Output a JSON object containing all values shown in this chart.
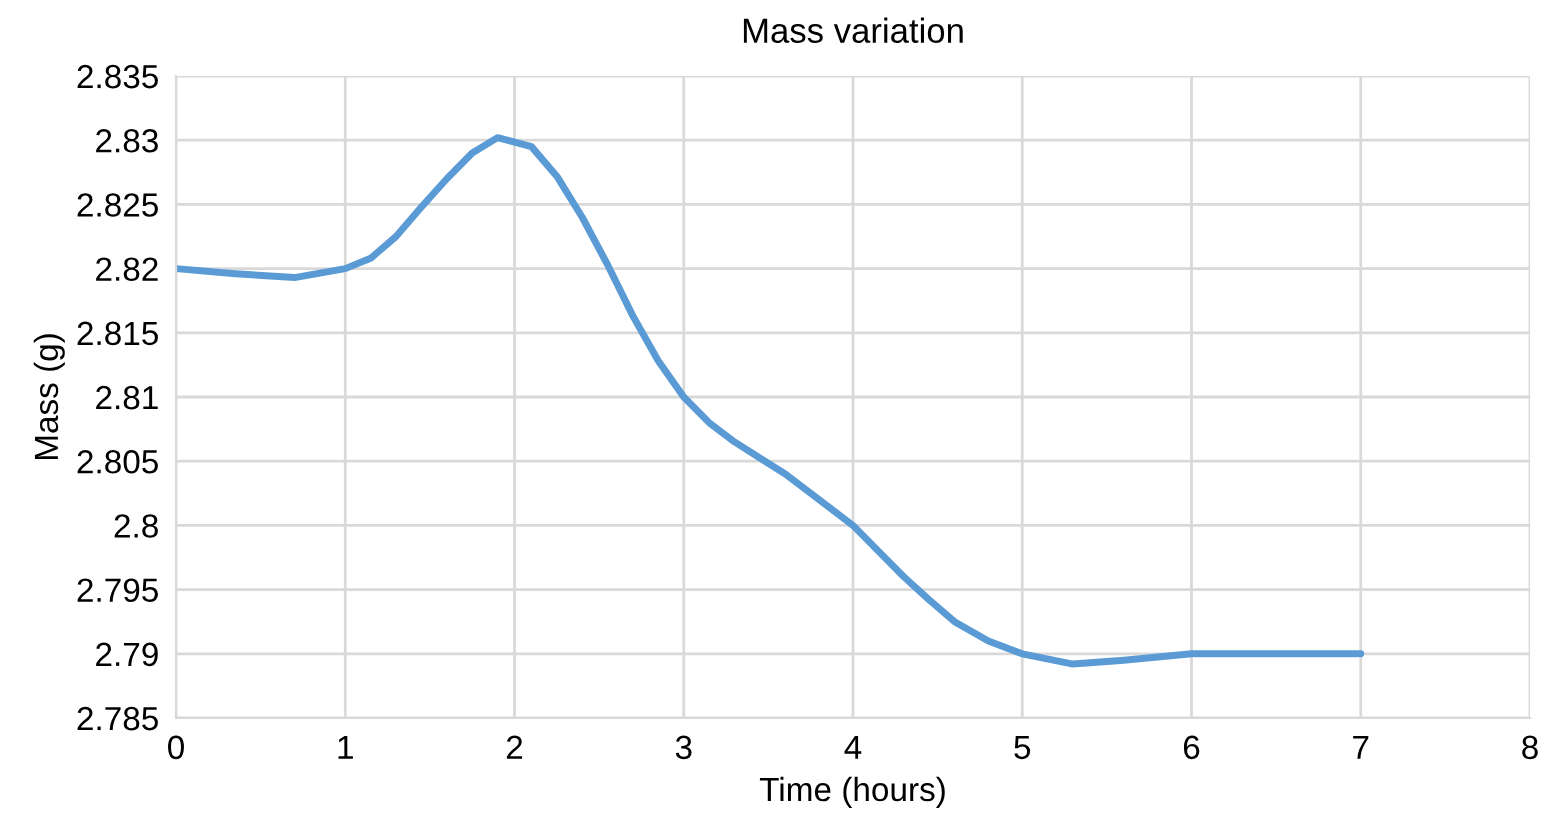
{
  "chart_data": {
    "type": "line",
    "title": "Mass variation",
    "xlabel": "Time (hours)",
    "ylabel": "Mass (g)",
    "x": [
      0,
      0.35,
      0.7,
      1,
      1.15,
      1.3,
      1.45,
      1.6,
      1.75,
      1.9,
      2.1,
      2.25,
      2.4,
      2.55,
      2.7,
      2.85,
      3,
      3.15,
      3.3,
      3.6,
      4,
      4.15,
      4.3,
      4.45,
      4.6,
      4.8,
      5,
      5.3,
      5.6,
      6,
      7
    ],
    "series": [
      {
        "color": "#5b9bd5",
        "values": [
          2.82,
          2.8196,
          2.8193,
          2.82,
          2.8208,
          2.8225,
          2.8248,
          2.827,
          2.829,
          2.8302,
          2.8295,
          2.8272,
          2.824,
          2.8203,
          2.8163,
          2.8128,
          2.81,
          2.808,
          2.8065,
          2.804,
          2.8,
          2.798,
          2.796,
          2.7942,
          2.7925,
          2.791,
          2.79,
          2.7892,
          2.7895,
          2.79,
          2.79
        ]
      }
    ],
    "xlim": [
      0,
      8
    ],
    "xticks": [
      0,
      1,
      2,
      3,
      4,
      5,
      6,
      7,
      8
    ],
    "ylim": [
      2.785,
      2.835
    ],
    "yticks": [
      2.785,
      2.79,
      2.795,
      2.8,
      2.805,
      2.81,
      2.815,
      2.82,
      2.825,
      2.83,
      2.835
    ],
    "grid": true,
    "marker": "none",
    "line_style": "solid"
  }
}
